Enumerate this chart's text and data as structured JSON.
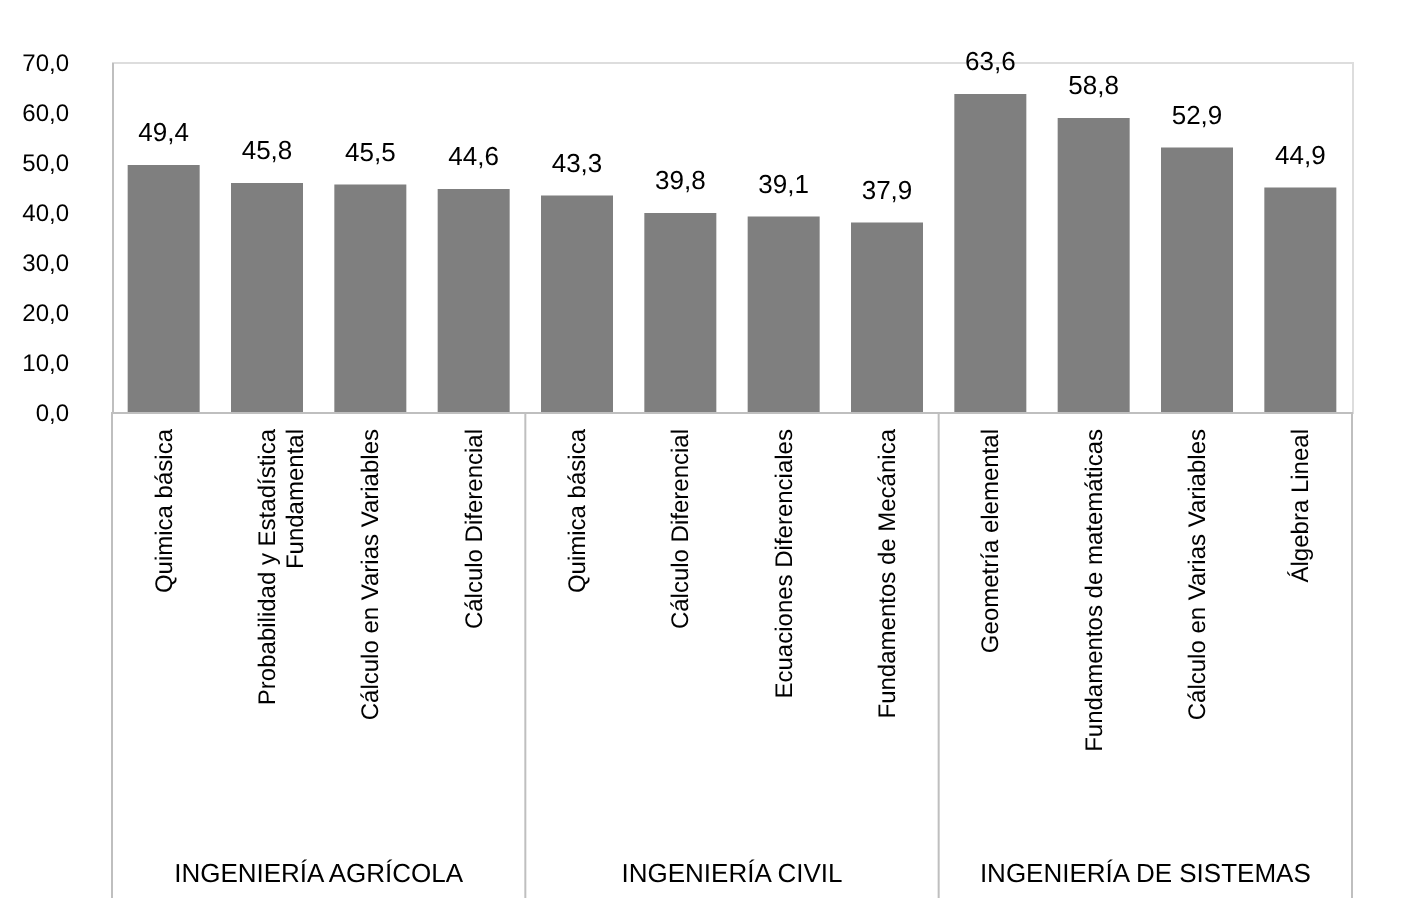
{
  "chart_data": {
    "type": "bar",
    "categories": [
      "Quimica básica",
      "Probabilidad y Estadística Fundamental",
      "Cálculo en Varias Variables",
      "Cálculo Diferencial",
      "Quimica básica",
      "Cálculo Diferencial",
      "Ecuaciones Diferenciales",
      "Fundamentos de Mecánica",
      "Geometría elemental",
      "Fundamentos de matemáticas",
      "Cálculo en Varias Variables",
      "Álgebra Lineal"
    ],
    "values": [
      49.4,
      45.8,
      45.5,
      44.6,
      43.3,
      39.8,
      39.1,
      37.9,
      63.6,
      58.8,
      52.9,
      44.9
    ],
    "color": "#7f7f7f",
    "ylim": [
      0,
      70
    ],
    "yticks": [
      {
        "value": 0,
        "label": "0,0"
      },
      {
        "value": 10,
        "label": "10,0"
      },
      {
        "value": 20,
        "label": "20,0"
      },
      {
        "value": 30,
        "label": "30,0"
      },
      {
        "value": 40,
        "label": "40,0"
      },
      {
        "value": 50,
        "label": "50,0"
      },
      {
        "value": 60,
        "label": "60,0"
      },
      {
        "value": 70,
        "label": "70,0"
      }
    ],
    "value_labels": [
      "49,4",
      "45,8",
      "45,5",
      "44,6",
      "43,3",
      "39,8",
      "39,1",
      "37,9",
      "63,6",
      "58,8",
      "52,9",
      "44,9"
    ],
    "annotations": [
      "INGENIERÍA AGRÍCOLA",
      "INGENIERÍA CIVIL",
      "INGENIERÍA DE SISTEMAS"
    ],
    "grid": false
  }
}
